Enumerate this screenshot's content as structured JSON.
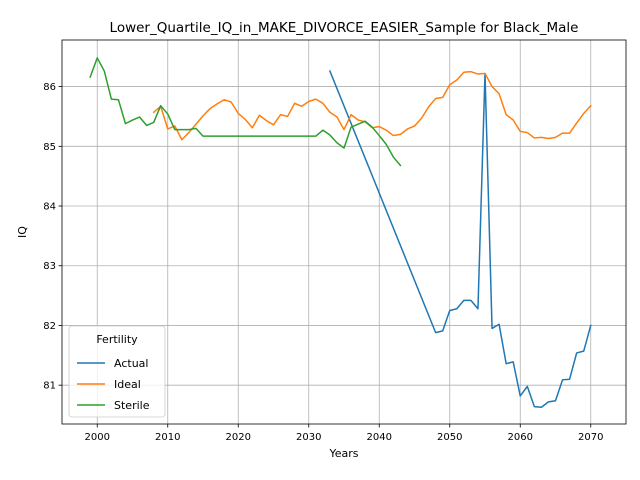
{
  "chart_data": {
    "type": "line",
    "title": "Lower_Quartile_IQ_in_MAKE_DIVORCE_EASIER_Sample for Black_Male",
    "xlabel": "Years",
    "ylabel": "IQ",
    "xlim": [
      1995,
      2075
    ],
    "ylim": [
      80.35,
      86.78
    ],
    "xticks": [
      2000,
      2010,
      2020,
      2030,
      2040,
      2050,
      2060,
      2070
    ],
    "yticks": [
      81,
      82,
      83,
      84,
      85,
      86
    ],
    "grid": true,
    "legend": {
      "title": "Fertility",
      "placement": "lower-left"
    },
    "series": [
      {
        "name": "Actual",
        "color": "#1f77b4",
        "x": [
          2033,
          2048,
          2049,
          2050,
          2051,
          2052,
          2053,
          2054,
          2055,
          2056,
          2057,
          2058,
          2059,
          2060,
          2061,
          2062,
          2063,
          2064,
          2065,
          2066,
          2067,
          2068,
          2069,
          2070
        ],
        "y": [
          86.26,
          81.88,
          81.91,
          82.25,
          82.28,
          82.42,
          82.42,
          82.28,
          86.22,
          81.95,
          82.02,
          81.36,
          81.39,
          80.82,
          80.98,
          80.64,
          80.63,
          80.72,
          80.74,
          81.09,
          81.1,
          81.54,
          81.57,
          82.0
        ]
      },
      {
        "name": "Ideal",
        "color": "#ff7f0e",
        "x": [
          2008,
          2009,
          2010,
          2011,
          2012,
          2013,
          2014,
          2015,
          2016,
          2017,
          2018,
          2019,
          2020,
          2021,
          2022,
          2023,
          2024,
          2025,
          2026,
          2027,
          2028,
          2029,
          2030,
          2031,
          2032,
          2033,
          2034,
          2035,
          2036,
          2037,
          2038,
          2039,
          2040,
          2041,
          2042,
          2043,
          2044,
          2045,
          2046,
          2047,
          2048,
          2049,
          2050,
          2051,
          2052,
          2053,
          2054,
          2055,
          2056,
          2057,
          2058,
          2059,
          2060,
          2061,
          2062,
          2063,
          2064,
          2065,
          2066,
          2067,
          2068,
          2069,
          2070
        ],
        "y": [
          85.57,
          85.67,
          85.29,
          85.34,
          85.11,
          85.23,
          85.37,
          85.51,
          85.63,
          85.71,
          85.78,
          85.74,
          85.55,
          85.45,
          85.31,
          85.52,
          85.43,
          85.36,
          85.53,
          85.5,
          85.72,
          85.67,
          85.75,
          85.79,
          85.72,
          85.57,
          85.49,
          85.28,
          85.53,
          85.44,
          85.41,
          85.31,
          85.33,
          85.27,
          85.18,
          85.2,
          85.29,
          85.34,
          85.47,
          85.66,
          85.8,
          85.82,
          86.03,
          86.11,
          86.24,
          86.25,
          86.21,
          86.22,
          86.0,
          85.88,
          85.53,
          85.44,
          85.25,
          85.23,
          85.14,
          85.15,
          85.13,
          85.15,
          85.22,
          85.22,
          85.39,
          85.55,
          85.68
        ]
      },
      {
        "name": "Sterile",
        "color": "#2ca02c",
        "x": [
          1999,
          2000,
          2001,
          2002,
          2003,
          2004,
          2005,
          2006,
          2007,
          2008,
          2009,
          2010,
          2011,
          2012,
          2013,
          2014,
          2015,
          2016,
          2017,
          2018,
          2019,
          2020,
          2021,
          2022,
          2023,
          2024,
          2025,
          2026,
          2027,
          2028,
          2029,
          2030,
          2031,
          2032,
          2033,
          2034,
          2035,
          2036,
          2037,
          2038,
          2039,
          2040,
          2041,
          2042,
          2043
        ],
        "y": [
          86.16,
          86.48,
          86.26,
          85.79,
          85.78,
          85.38,
          85.44,
          85.49,
          85.35,
          85.4,
          85.68,
          85.54,
          85.28,
          85.28,
          85.28,
          85.3,
          85.17,
          85.17,
          85.17,
          85.17,
          85.17,
          85.17,
          85.17,
          85.17,
          85.17,
          85.17,
          85.17,
          85.17,
          85.17,
          85.17,
          85.17,
          85.17,
          85.17,
          85.27,
          85.19,
          85.06,
          84.97,
          85.32,
          85.37,
          85.42,
          85.32,
          85.18,
          85.03,
          84.82,
          84.68
        ]
      }
    ]
  }
}
